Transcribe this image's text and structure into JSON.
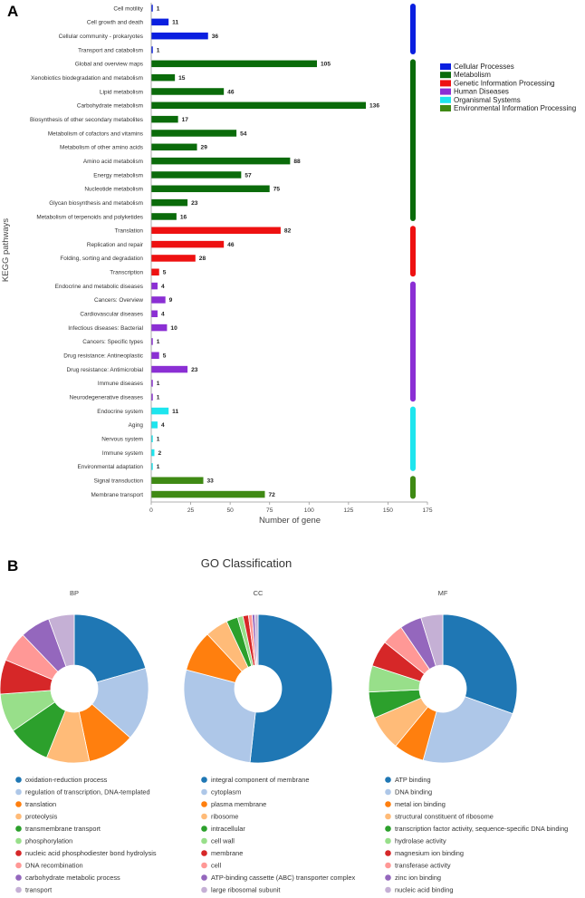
{
  "panel_a": {
    "letter": "A",
    "chart_data": {
      "type": "bar",
      "orientation": "horizontal",
      "xlabel": "Number of gene",
      "ylabel": "KEGG pathways",
      "xlim": [
        0,
        175
      ],
      "xticks": [
        0,
        25,
        50,
        75,
        100,
        125,
        150,
        175
      ],
      "groups": [
        {
          "name": "Cellular Processes",
          "color": "#0a1fe0"
        },
        {
          "name": "Metabolism",
          "color": "#0a6b0a"
        },
        {
          "name": "Genetic Information Processing",
          "color": "#ee1111"
        },
        {
          "name": "Human Diseases",
          "color": "#8b2fd4"
        },
        {
          "name": "Organismal Systems",
          "color": "#1ee5ee"
        },
        {
          "name": "Environmental Information Processing",
          "color": "#3f8a14"
        }
      ],
      "categories": [
        {
          "label": "Cell motility",
          "value": 1,
          "group": 0
        },
        {
          "label": "Cell growth and death",
          "value": 11,
          "group": 0
        },
        {
          "label": "Cellular community - prokaryotes",
          "value": 36,
          "group": 0
        },
        {
          "label": "Transport and catabolism",
          "value": 1,
          "group": 0
        },
        {
          "label": "Global and overview maps",
          "value": 105,
          "group": 1
        },
        {
          "label": "Xenobiotics biodegradation and metabolism",
          "value": 15,
          "group": 1
        },
        {
          "label": "Lipid metabolism",
          "value": 46,
          "group": 1
        },
        {
          "label": "Carbohydrate metabolism",
          "value": 136,
          "group": 1
        },
        {
          "label": "Biosynthesis of other secondary metabolites",
          "value": 17,
          "group": 1
        },
        {
          "label": "Metabolism of cofactors and vitamins",
          "value": 54,
          "group": 1
        },
        {
          "label": "Metabolism of other amino acids",
          "value": 29,
          "group": 1
        },
        {
          "label": "Amino acid metabolism",
          "value": 88,
          "group": 1
        },
        {
          "label": "Energy metabolism",
          "value": 57,
          "group": 1
        },
        {
          "label": "Nucleotide metabolism",
          "value": 75,
          "group": 1
        },
        {
          "label": "Glycan biosynthesis and metabolism",
          "value": 23,
          "group": 1
        },
        {
          "label": "Metabolism of terpenoids and polyketides",
          "value": 16,
          "group": 1
        },
        {
          "label": "Translation",
          "value": 82,
          "group": 2
        },
        {
          "label": "Replication and repair",
          "value": 46,
          "group": 2
        },
        {
          "label": "Folding, sorting and degradation",
          "value": 28,
          "group": 2
        },
        {
          "label": "Transcription",
          "value": 5,
          "group": 2
        },
        {
          "label": "Endocrine and metabolic diseases",
          "value": 4,
          "group": 3
        },
        {
          "label": "Cancers: Overview",
          "value": 9,
          "group": 3
        },
        {
          "label": "Cardiovascular diseases",
          "value": 4,
          "group": 3
        },
        {
          "label": "Infectious diseases: Bacterial",
          "value": 10,
          "group": 3
        },
        {
          "label": "Cancers: Specific types",
          "value": 1,
          "group": 3
        },
        {
          "label": "Drug resistance: Antineoplastic",
          "value": 5,
          "group": 3
        },
        {
          "label": "Drug resistance: Antimicrobial",
          "value": 23,
          "group": 3
        },
        {
          "label": "Immune diseases",
          "value": 1,
          "group": 3
        },
        {
          "label": "Neurodegenerative diseases",
          "value": 1,
          "group": 3
        },
        {
          "label": "Endocrine system",
          "value": 11,
          "group": 4
        },
        {
          "label": "Aging",
          "value": 4,
          "group": 4
        },
        {
          "label": "Nervous system",
          "value": 1,
          "group": 4
        },
        {
          "label": "Immune system",
          "value": 2,
          "group": 4
        },
        {
          "label": "Environmental adaptation",
          "value": 1,
          "group": 4
        },
        {
          "label": "Signal transduction",
          "value": 33,
          "group": 5
        },
        {
          "label": "Membrane transport",
          "value": 72,
          "group": 5
        }
      ]
    }
  },
  "panel_b": {
    "letter": "B",
    "title": "GO Classification",
    "colors": [
      "#1f77b4",
      "#aec7e8",
      "#ff7f0e",
      "#ffbb78",
      "#2ca02c",
      "#98df8a",
      "#d62728",
      "#ff9896",
      "#9467bd",
      "#c5b0d5"
    ],
    "chart_data": [
      {
        "type": "pie",
        "donut": true,
        "title": "BP",
        "labels": [
          "oxidation-reduction process",
          "regulation of transcription, DNA-templated",
          "translation",
          "proteolysis",
          "transmembrane transport",
          "phosphorylation",
          "nucleic acid phosphodiester bond hydrolysis",
          "DNA recombination",
          "carbohydrate metabolic process",
          "transport"
        ],
        "values": [
          22,
          17,
          11,
          10,
          10,
          9,
          8,
          7,
          7,
          6
        ]
      },
      {
        "type": "pie",
        "donut": true,
        "title": "CC",
        "labels": [
          "integral component of membrane",
          "cytoplasm",
          "plasma membrane",
          "ribosome",
          "intracellular",
          "cell wall",
          "membrane",
          "cell",
          "ATP-binding cassette (ABC) transporter complex",
          "large ribosomal subunit"
        ],
        "values": [
          52,
          27.5,
          9,
          5,
          2.5,
          1.2,
          1.2,
          0.8,
          0.6,
          0.7
        ]
      },
      {
        "type": "pie",
        "donut": true,
        "title": "MF",
        "labels": [
          "ATP binding",
          "DNA binding",
          "metal ion binding",
          "structural constituent of ribosome",
          "transcription factor activity, sequence-specific DNA binding",
          "hydrolase activity",
          "magnesium ion binding",
          "transferase activity",
          "zinc ion binding",
          "nucleic acid binding"
        ],
        "values": [
          32,
          25,
          7,
          8,
          6,
          6,
          6,
          5,
          5,
          5
        ]
      }
    ]
  }
}
